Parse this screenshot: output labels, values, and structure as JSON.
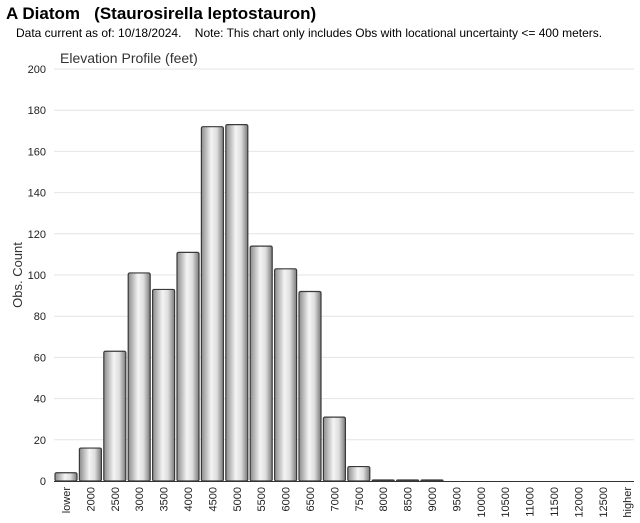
{
  "header": {
    "title": "A Diatom   (Staurosirella leptostauron)",
    "note": "Data current as of: 10/18/2024.    Note: This chart only includes Obs with locational uncertainty <= 400 meters."
  },
  "chart_data": {
    "type": "bar",
    "title": "Elevation Profile (feet)",
    "xlabel": "",
    "ylabel": "Obs. Count",
    "ylim": [
      0,
      200
    ],
    "yticks": [
      0,
      20,
      40,
      60,
      80,
      100,
      120,
      140,
      160,
      180,
      200
    ],
    "grid": true,
    "categories": [
      "lower",
      "2000",
      "2500",
      "3000",
      "3500",
      "4000",
      "4500",
      "5000",
      "5500",
      "6000",
      "6500",
      "7000",
      "7500",
      "8000",
      "8500",
      "9000",
      "9500",
      "10000",
      "10500",
      "11000",
      "11500",
      "12000",
      "12500",
      "higher"
    ],
    "values": [
      4,
      16,
      63,
      101,
      93,
      111,
      172,
      173,
      114,
      103,
      92,
      31,
      7,
      0.5,
      0.5,
      0.5,
      0,
      0,
      0,
      0,
      0,
      0,
      0,
      0
    ]
  }
}
